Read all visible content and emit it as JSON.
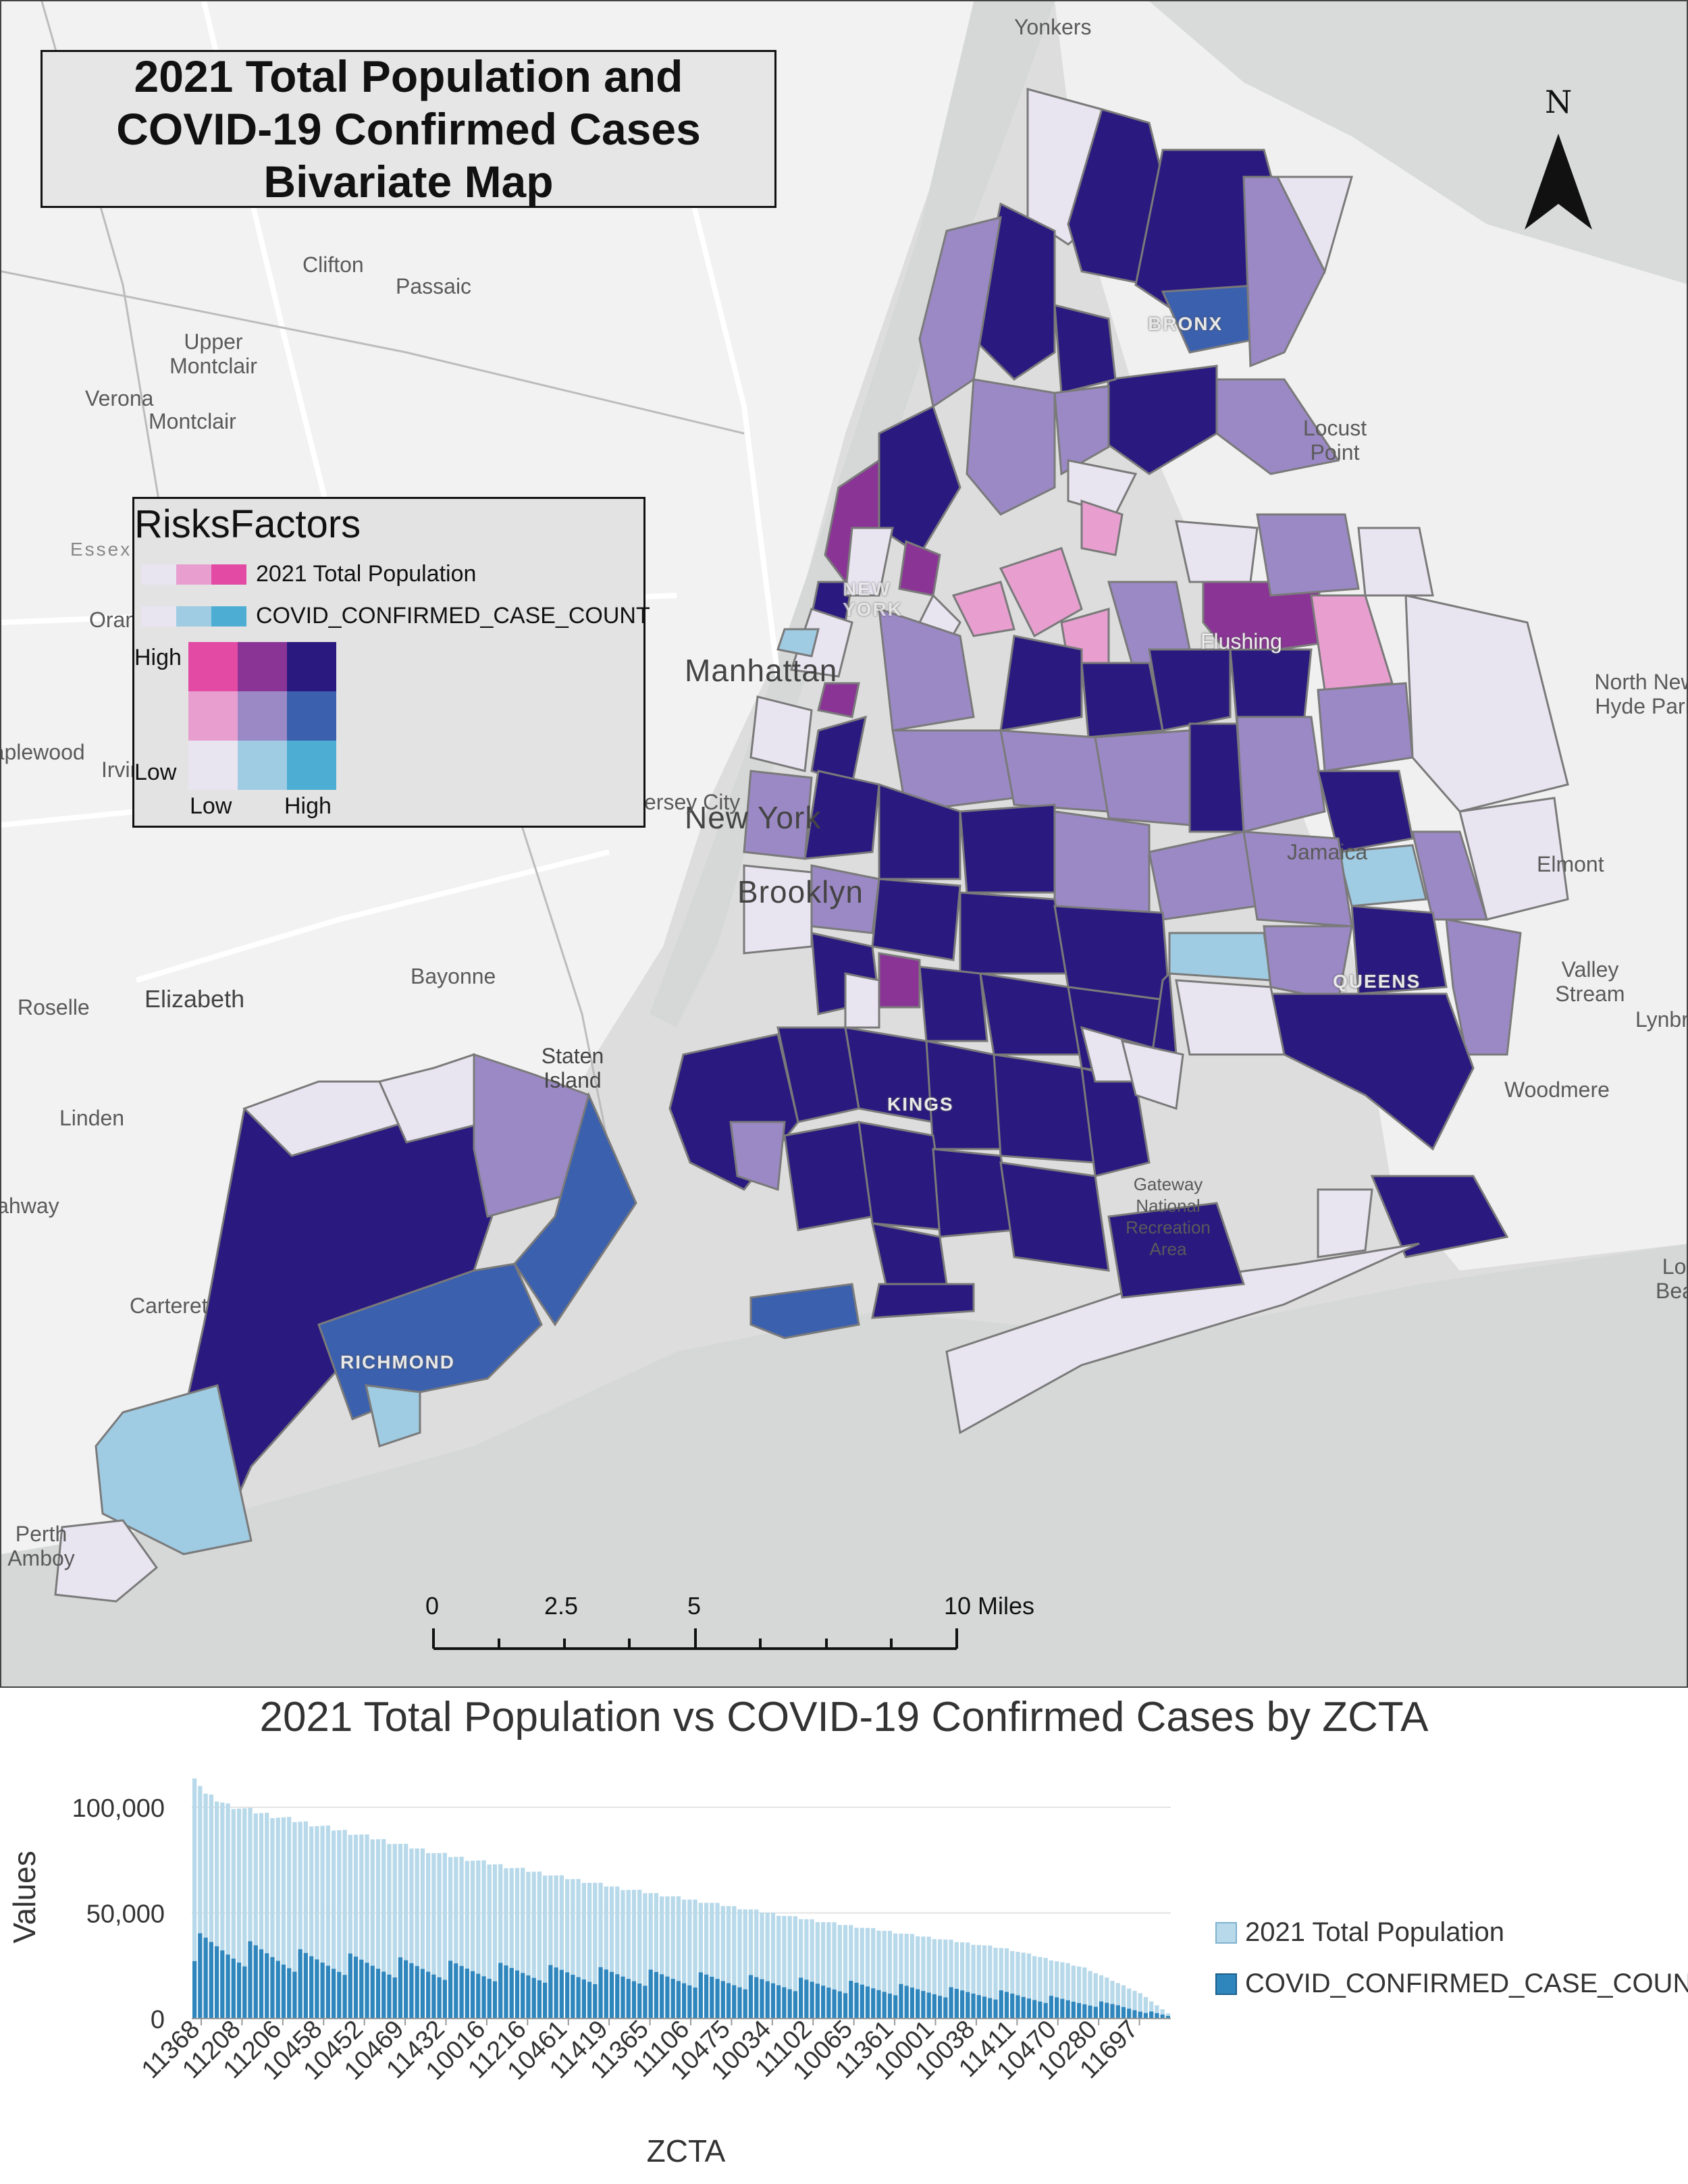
{
  "map": {
    "title_lines": [
      "2021 Total Population and",
      "COVID-19 Confirmed Cases",
      "Bivariate Map"
    ],
    "north_label": "N",
    "legend": {
      "title": "RisksFactors",
      "row1_label": "2021 Total Population",
      "row2_label": "COVID_CONFIRMED_CASE_COUNT",
      "high_label": "High",
      "low_label": "Low",
      "x_low_label": "Low",
      "x_high_label": "High",
      "grid_colors": [
        [
          "#e24aa4",
          "#8a3595",
          "#2a1a7f"
        ],
        [
          "#e89fd0",
          "#9b89c5",
          "#3b60ae"
        ],
        [
          "#e8e4f0",
          "#9fcbe3",
          "#4eadd2"
        ]
      ]
    },
    "places": [
      "Yonkers",
      "Clifton",
      "Passaic",
      "Upper Montclair",
      "Verona",
      "Montclair",
      "Essex",
      "Orange",
      "Irvington",
      "Maplewood",
      "Manhattan",
      "New York",
      "Jersey City",
      "Brooklyn",
      "Bayonne",
      "Elizabeth",
      "Roselle",
      "Linden",
      "Staten Island",
      "Carteret",
      "Perth Amboy",
      "Rahway",
      "Locust Point",
      "Flushing",
      "Jamaica",
      "North New Hyde Park",
      "Elmont",
      "Valley Stream",
      "Lynbrook",
      "Woodmere",
      "Long Beach",
      "Gateway National Recreation Area"
    ],
    "boroughs": [
      "BRONX",
      "QUEENS",
      "KINGS",
      "RICHMOND",
      "NEW YORK"
    ],
    "scale": {
      "ticks": [
        "0",
        "2.5",
        "5",
        "10 Miles"
      ]
    }
  },
  "colors": {
    "dark": "#2a1a7f",
    "mid_purple": "#9b89c5",
    "light_lav": "#e8e4f0",
    "pink": "#e89fd0",
    "magenta": "#8a3595",
    "blue": "#3b60ae",
    "light_blue": "#9fcbe3",
    "population_bar": "#b7d9ea",
    "covid_bar": "#2f86bd",
    "land": "#f2f2f2",
    "water": "#d6d8d8"
  },
  "chart_data": {
    "type": "bar",
    "title": "2021 Total Population vs COVID-19 Confirmed Cases by ZCTA",
    "xlabel": "ZCTA",
    "ylabel": "Values",
    "ylim": [
      0,
      115000
    ],
    "yticks": [
      0,
      50000,
      100000
    ],
    "ytick_labels": [
      "0",
      "50,000",
      "100,000"
    ],
    "xtick_labels": [
      "11368",
      "11208",
      "11206",
      "10458",
      "10452",
      "10469",
      "11432",
      "10016",
      "11216",
      "10461",
      "11419",
      "11365",
      "11106",
      "10475",
      "10034",
      "11102",
      "10065",
      "11361",
      "10001",
      "10038",
      "11411",
      "10470",
      "10280",
      "11697"
    ],
    "n_categories": 176,
    "series": [
      {
        "name": "2021 Total Population",
        "stacked_total": true,
        "start": 115000,
        "profile": [
          [
            0,
            115000
          ],
          [
            2,
            106000
          ],
          [
            6,
            101000
          ],
          [
            14,
            96000
          ],
          [
            28,
            88000
          ],
          [
            44,
            78000
          ],
          [
            60,
            70000
          ],
          [
            76,
            62000
          ],
          [
            92,
            55000
          ],
          [
            110,
            47000
          ],
          [
            128,
            40000
          ],
          [
            146,
            33000
          ],
          [
            160,
            24000
          ],
          [
            170,
            12000
          ],
          [
            175,
            2500
          ]
        ]
      },
      {
        "name": "COVID_CONFIRMED_CASE_COUNT",
        "profile": [
          [
            0,
            34000
          ],
          [
            20,
            27000
          ],
          [
            44,
            23000
          ],
          [
            76,
            20000
          ],
          [
            110,
            16000
          ],
          [
            146,
            11000
          ],
          [
            166,
            6000
          ],
          [
            175,
            1200
          ]
        ]
      }
    ]
  }
}
